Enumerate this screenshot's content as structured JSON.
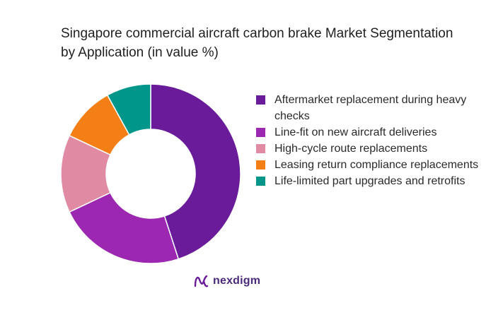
{
  "chart_data": {
    "type": "pie",
    "donut": true,
    "title": "Singapore commercial aircraft carbon brake Market Segmentation by Application (in value %)",
    "categories": [
      "Aftermarket replacement during heavy checks",
      "Line-fit on new aircraft deliveries",
      "High-cycle route replacements",
      "Leasing return compliance replacements",
      "Life-limited part upgrades and retrofits"
    ],
    "values": [
      45,
      23,
      14,
      10,
      8
    ],
    "colors": [
      "#6a1b9a",
      "#9c27b0",
      "#e08ba3",
      "#f57f17",
      "#00968a"
    ],
    "legend": "right"
  },
  "brand": {
    "name": "nexdigm",
    "logo_color": "#6a1b9a"
  }
}
